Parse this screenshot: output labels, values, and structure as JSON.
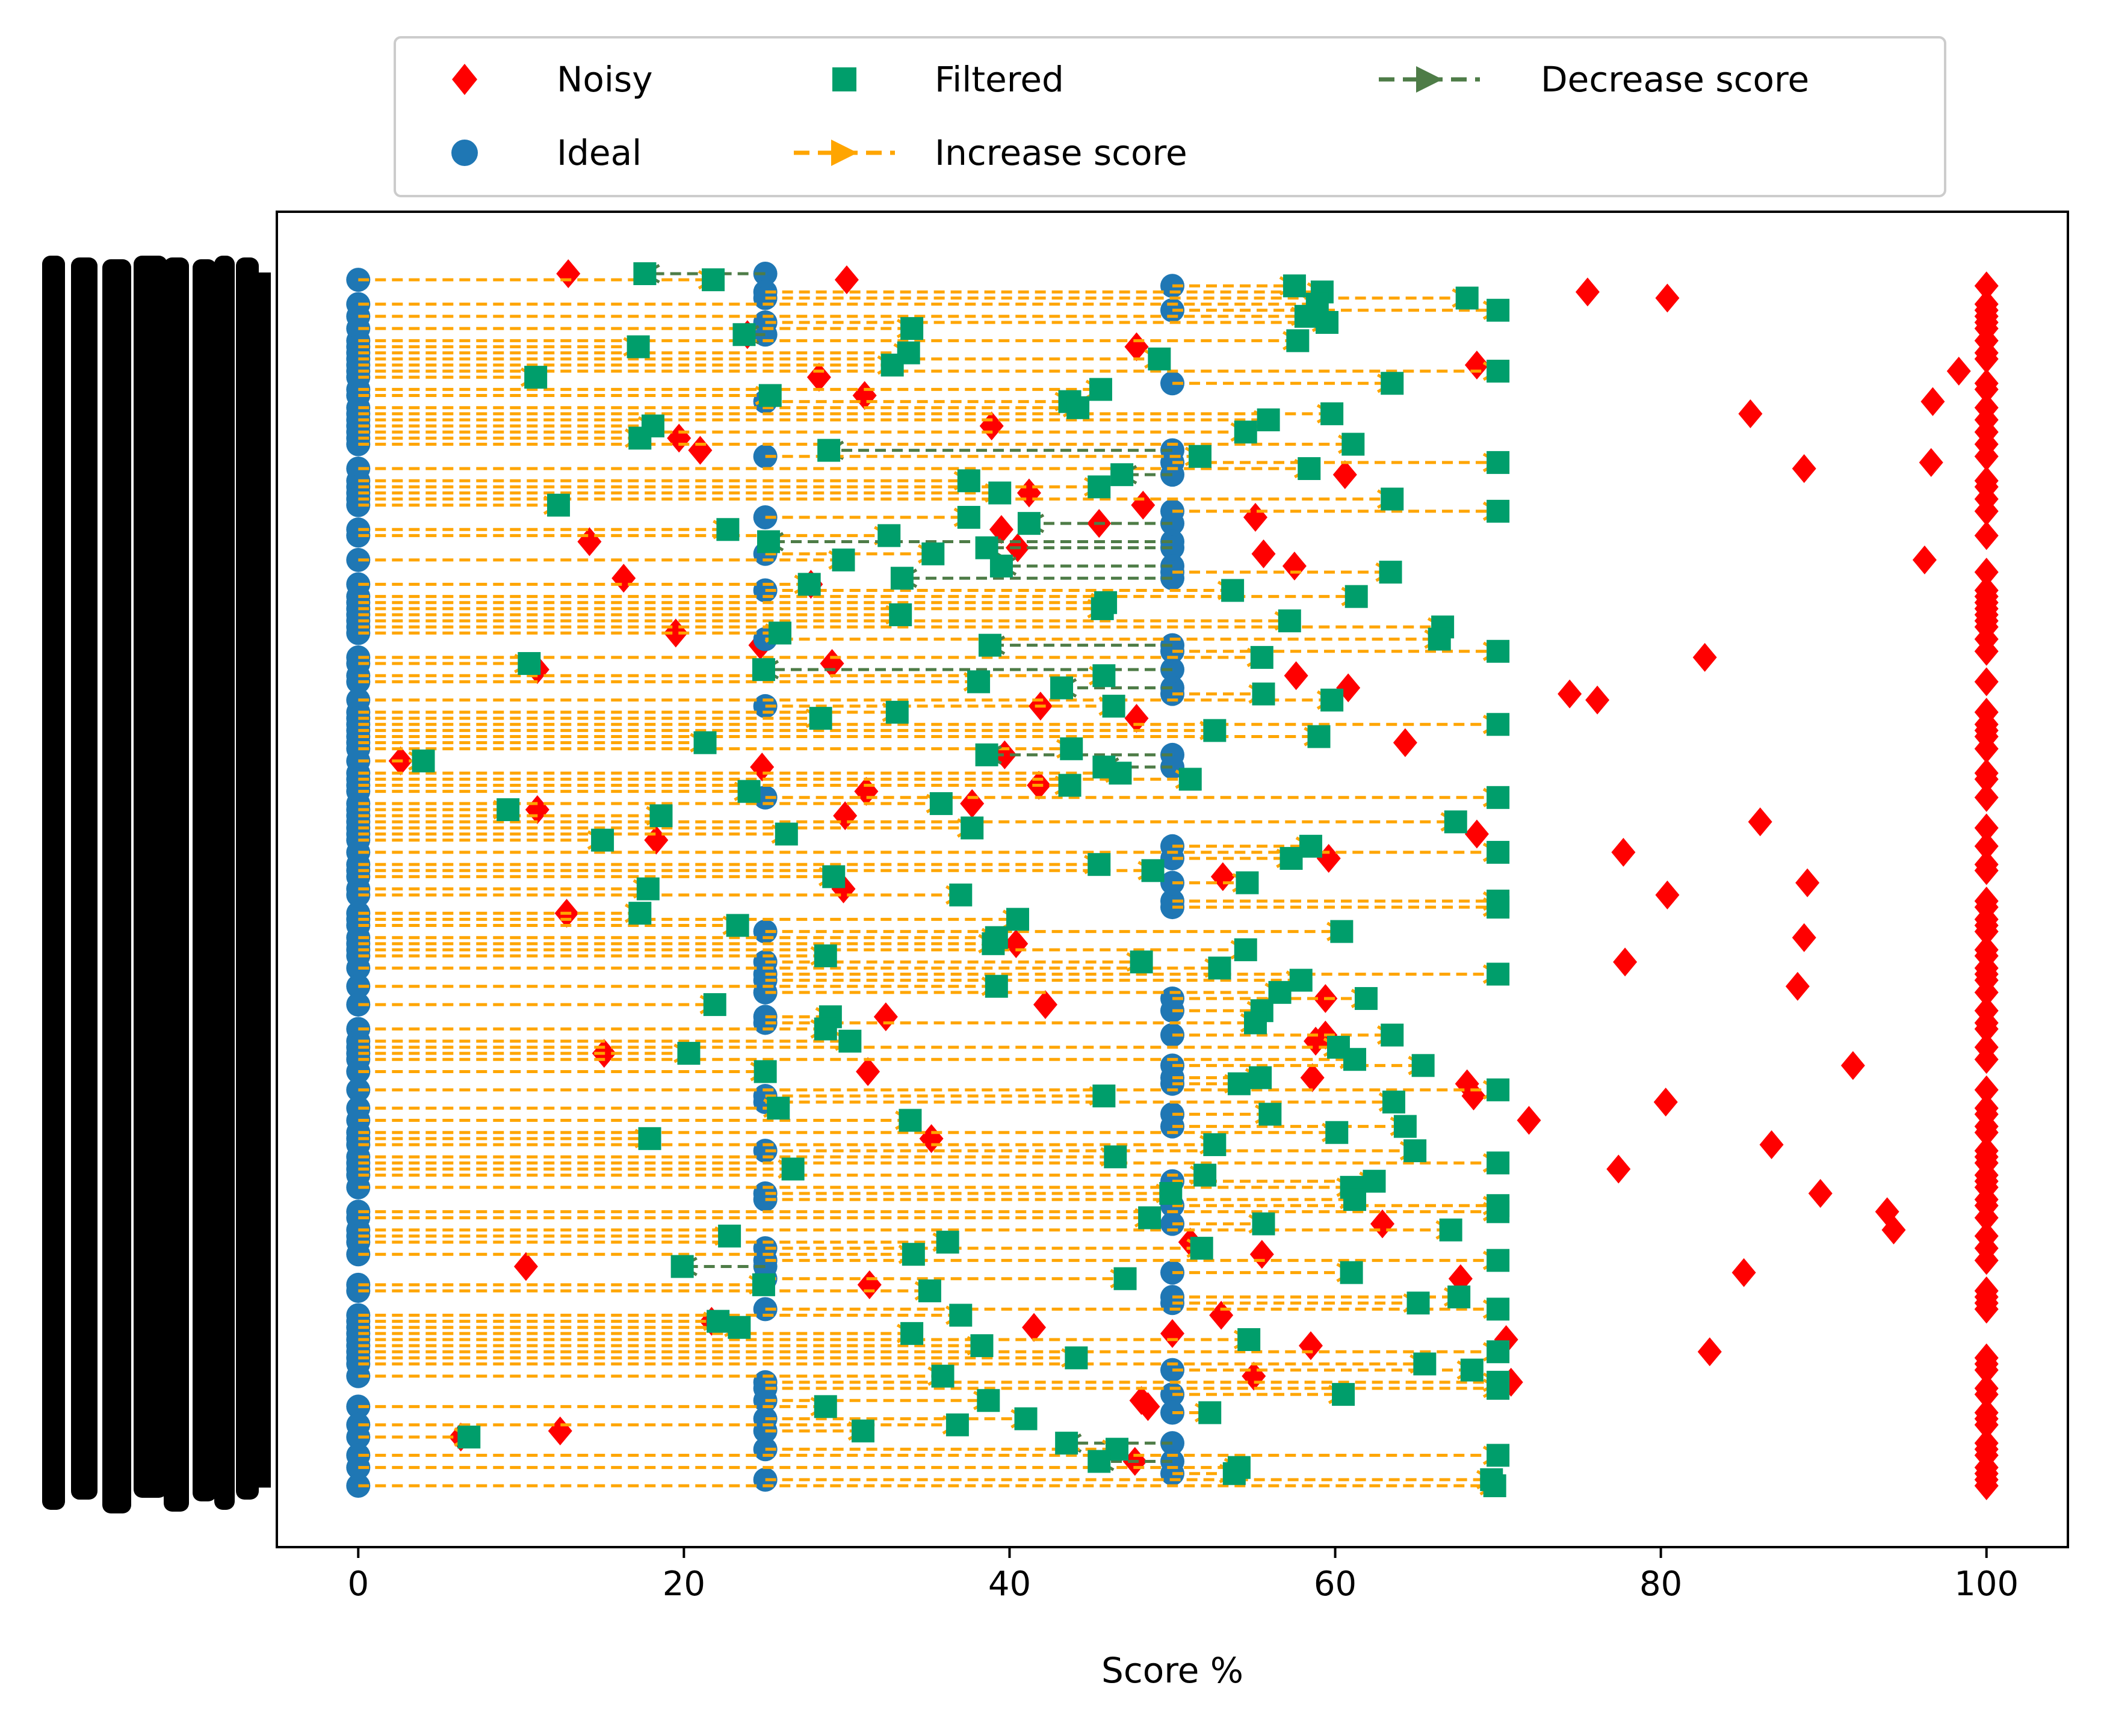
{
  "chart_data": {
    "type": "scatter",
    "title": "",
    "xlabel": "Score %",
    "ylabel": "",
    "xlim": [
      -5,
      105
    ],
    "xticks": [
      0,
      20,
      40,
      60,
      80,
      100
    ],
    "y_axis": "categorical rows, tick labels overprinted and illegible",
    "grid": false,
    "legend": {
      "placement": "top, outside plot, 3 columns",
      "entries": [
        {
          "label": "Noisy",
          "marker": "diamond",
          "color": "#ff0000"
        },
        {
          "label": "Ideal",
          "marker": "circle",
          "color": "#1f77b4"
        },
        {
          "label": "Filtered",
          "marker": "square",
          "color": "#009e6b"
        },
        {
          "label": "Increase score",
          "marker": "dashed-arrow",
          "color": "#ffa500"
        },
        {
          "label": "Decrease score",
          "marker": "dashed-arrow",
          "color": "#4e7c47"
        }
      ]
    },
    "series": [
      {
        "name": "Ideal",
        "description": "scores clustered at 0, 25, 50 across all rows"
      },
      {
        "name": "Noisy",
        "description": "scores spread 0–100, dense column at 100"
      },
      {
        "name": "Filtered",
        "description": "scores mostly 0–70"
      },
      {
        "name": "Increase score",
        "description": "arrows pointing right between ideal and filtered"
      },
      {
        "name": "Decrease score",
        "description": "arrows pointing left between ideal and filtered"
      }
    ],
    "row_count": 200,
    "ideal_levels": [
      0,
      25,
      50
    ]
  }
}
